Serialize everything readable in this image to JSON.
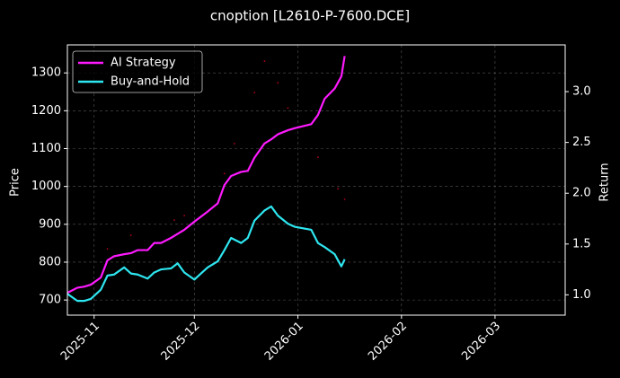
{
  "chart_data": {
    "type": "line",
    "title": "cnoption [L2610-P-7600.DCE]",
    "y_label": "Price",
    "y2_label": "Return",
    "xlim": [
      "2025-10-24",
      "2026-03-22"
    ],
    "xticks": [
      {
        "value": "2025-11-01",
        "label": "2025-11"
      },
      {
        "value": "2025-12-01",
        "label": "2025-12"
      },
      {
        "value": "2026-01-01",
        "label": "2026-01"
      },
      {
        "value": "2026-02-01",
        "label": "2026-02"
      },
      {
        "value": "2026-03-01",
        "label": "2026-03"
      }
    ],
    "ylim": [
      660,
      1374
    ],
    "yticks": [
      700,
      800,
      900,
      1000,
      1100,
      1200,
      1300
    ],
    "y2lim": [
      0.8,
      3.46
    ],
    "y2ticks": [
      {
        "value": 1.0,
        "label": "1.0"
      },
      {
        "value": 1.5,
        "label": "1.5"
      },
      {
        "value": 2.0,
        "label": "2.0"
      },
      {
        "value": 2.5,
        "label": "2.5"
      },
      {
        "value": 3.0,
        "label": "3.0"
      }
    ],
    "grid": true,
    "legend": "upper-left",
    "x": [
      "2025-10-24",
      "2025-10-27",
      "2025-10-29",
      "2025-10-31",
      "2025-11-03",
      "2025-11-05",
      "2025-11-07",
      "2025-11-10",
      "2025-11-12",
      "2025-11-14",
      "2025-11-17",
      "2025-11-19",
      "2025-11-21",
      "2025-11-24",
      "2025-11-26",
      "2025-11-28",
      "2025-12-01",
      "2025-12-03",
      "2025-12-05",
      "2025-12-08",
      "2025-12-10",
      "2025-12-12",
      "2025-12-15",
      "2025-12-17",
      "2025-12-19",
      "2025-12-22",
      "2025-12-24",
      "2025-12-26",
      "2025-12-29",
      "2025-12-31",
      "2026-01-05",
      "2026-01-07",
      "2026-01-09",
      "2026-01-12",
      "2026-01-14",
      "2026-01-15"
    ],
    "series": [
      {
        "name": "AI Strategy",
        "color": "#ff1aff",
        "axis": "y2",
        "values": [
          1.02,
          1.07,
          1.08,
          1.1,
          1.17,
          1.34,
          1.38,
          1.4,
          1.41,
          1.44,
          1.44,
          1.51,
          1.51,
          1.56,
          1.6,
          1.64,
          1.72,
          1.77,
          1.82,
          1.9,
          2.08,
          2.17,
          2.21,
          2.22,
          2.35,
          2.49,
          2.53,
          2.58,
          2.62,
          2.64,
          2.68,
          2.77,
          2.93,
          3.03,
          3.15,
          3.35
        ]
      },
      {
        "name": "Buy-and-Hold",
        "color": "#2ee6f0",
        "axis": "y2",
        "values": [
          1.01,
          0.94,
          0.94,
          0.96,
          1.05,
          1.19,
          1.2,
          1.27,
          1.21,
          1.2,
          1.16,
          1.22,
          1.25,
          1.26,
          1.31,
          1.22,
          1.15,
          1.21,
          1.27,
          1.33,
          1.44,
          1.56,
          1.51,
          1.56,
          1.73,
          1.83,
          1.87,
          1.78,
          1.7,
          1.67,
          1.64,
          1.51,
          1.47,
          1.4,
          1.28,
          1.35
        ]
      }
    ],
    "price_points": {
      "color": "#b3001b",
      "x": [
        "2025-11-05",
        "2025-11-12",
        "2025-11-25",
        "2025-11-28",
        "2025-12-10",
        "2025-12-13",
        "2025-12-19",
        "2025-12-22",
        "2025-12-26",
        "2025-12-29",
        "2026-01-07",
        "2026-01-13",
        "2026-01-15"
      ],
      "values": [
        835,
        871,
        911,
        923,
        1034,
        1113,
        1248,
        1331,
        1274,
        1207,
        1077,
        994,
        966
      ]
    }
  }
}
